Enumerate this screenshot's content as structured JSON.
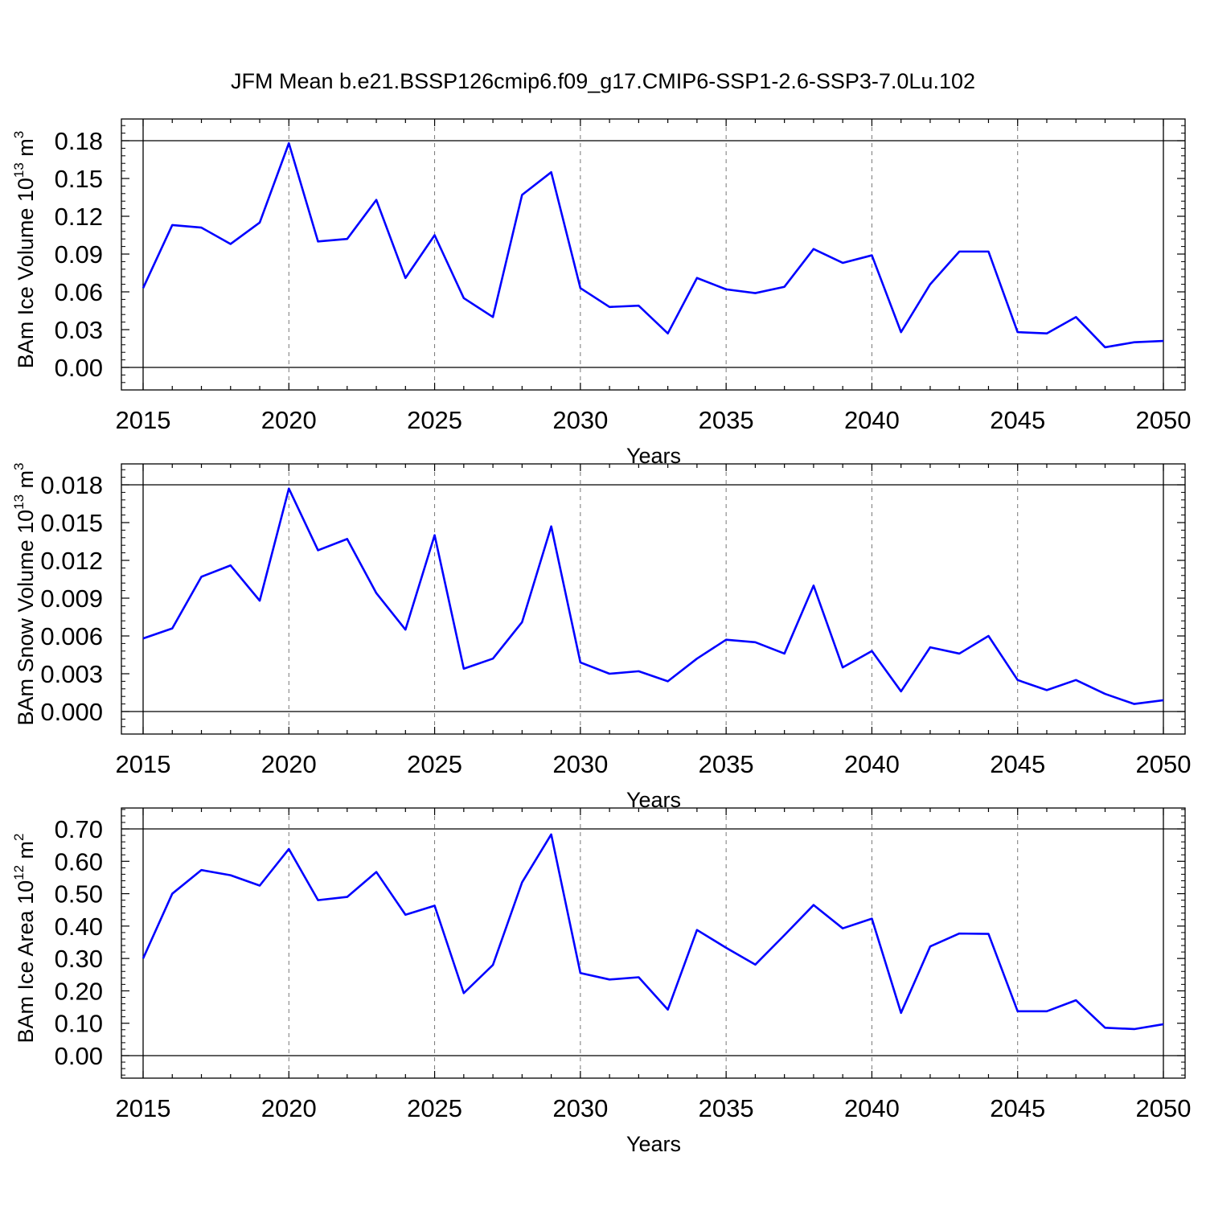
{
  "title": "JFM Mean b.e21.BSSP126cmip6.f09_g17.CMIP6-SSP1-2.6-SSP3-7.0Lu.102",
  "line_color": "#0000ff",
  "chart_data": [
    {
      "type": "line",
      "xlabel": "Years",
      "ylabel": "BAm Ice Volume 10",
      "ylabel_exp": "13",
      "ylabel_unit": " m",
      "ylabel_unit_exp": "3",
      "xlim": [
        2015,
        2050
      ],
      "ylim": [
        0,
        0.18
      ],
      "x_ticks": [
        2015,
        2020,
        2025,
        2030,
        2035,
        2040,
        2045,
        2050
      ],
      "x_tick_labels": [
        "2015",
        "2020",
        "2025",
        "2030",
        "2035",
        "2040",
        "2045",
        "2050"
      ],
      "y_ticks": [
        0,
        0.03,
        0.06,
        0.09,
        0.12,
        0.15,
        0.18
      ],
      "y_tick_labels": [
        "0.00",
        "0.03",
        "0.06",
        "0.09",
        "0.12",
        "0.15",
        "0.18"
      ],
      "grid": "vertical dashed at major x ticks",
      "x": [
        2015,
        2016,
        2017,
        2018,
        2019,
        2020,
        2021,
        2022,
        2023,
        2024,
        2025,
        2026,
        2027,
        2028,
        2029,
        2030,
        2031,
        2032,
        2033,
        2034,
        2035,
        2036,
        2037,
        2038,
        2039,
        2040,
        2041,
        2042,
        2043,
        2044,
        2045,
        2046,
        2047,
        2048,
        2049,
        2050
      ],
      "y": [
        0.063,
        0.113,
        0.111,
        0.098,
        0.115,
        0.178,
        0.1,
        0.102,
        0.133,
        0.071,
        0.105,
        0.055,
        0.04,
        0.137,
        0.155,
        0.063,
        0.048,
        0.049,
        0.027,
        0.071,
        0.062,
        0.059,
        0.064,
        0.094,
        0.083,
        0.089,
        0.028,
        0.066,
        0.092,
        0.092,
        0.028,
        0.027,
        0.04,
        0.016,
        0.02,
        0.021
      ]
    },
    {
      "type": "line",
      "xlabel": "Years",
      "ylabel": "BAm Snow Volume 10",
      "ylabel_exp": "13",
      "ylabel_unit": " m",
      "ylabel_unit_exp": "3",
      "xlim": [
        2015,
        2050
      ],
      "ylim": [
        0,
        0.018
      ],
      "x_ticks": [
        2015,
        2020,
        2025,
        2030,
        2035,
        2040,
        2045,
        2050
      ],
      "x_tick_labels": [
        "2015",
        "2020",
        "2025",
        "2030",
        "2035",
        "2040",
        "2045",
        "2050"
      ],
      "y_ticks": [
        0,
        0.003,
        0.006,
        0.009,
        0.012,
        0.015,
        0.018
      ],
      "y_tick_labels": [
        "0.000",
        "0.003",
        "0.006",
        "0.009",
        "0.012",
        "0.015",
        "0.018"
      ],
      "grid": "vertical dashed at major x ticks",
      "x": [
        2015,
        2016,
        2017,
        2018,
        2019,
        2020,
        2021,
        2022,
        2023,
        2024,
        2025,
        2026,
        2027,
        2028,
        2029,
        2030,
        2031,
        2032,
        2033,
        2034,
        2035,
        2036,
        2037,
        2038,
        2039,
        2040,
        2041,
        2042,
        2043,
        2044,
        2045,
        2046,
        2047,
        2048,
        2049,
        2050
      ],
      "y": [
        0.0058,
        0.0066,
        0.0107,
        0.0116,
        0.0088,
        0.0177,
        0.0128,
        0.0137,
        0.0094,
        0.0065,
        0.014,
        0.0034,
        0.0042,
        0.0071,
        0.0147,
        0.0039,
        0.003,
        0.0032,
        0.0024,
        0.0042,
        0.0057,
        0.0055,
        0.0046,
        0.01,
        0.0035,
        0.0048,
        0.0016,
        0.0051,
        0.0046,
        0.006,
        0.0025,
        0.0017,
        0.0025,
        0.0014,
        0.0006,
        0.0009
      ]
    },
    {
      "type": "line",
      "xlabel": "Years",
      "ylabel": "BAm Ice Area 10",
      "ylabel_exp": "12",
      "ylabel_unit": " m",
      "ylabel_unit_exp": "2",
      "xlim": [
        2015,
        2050
      ],
      "ylim": [
        0,
        0.7
      ],
      "x_ticks": [
        2015,
        2020,
        2025,
        2030,
        2035,
        2040,
        2045,
        2050
      ],
      "x_tick_labels": [
        "2015",
        "2020",
        "2025",
        "2030",
        "2035",
        "2040",
        "2045",
        "2050"
      ],
      "y_ticks": [
        0,
        0.1,
        0.2,
        0.3,
        0.4,
        0.5,
        0.6,
        0.7
      ],
      "y_tick_labels": [
        "0.00",
        "0.10",
        "0.20",
        "0.30",
        "0.40",
        "0.50",
        "0.60",
        "0.70"
      ],
      "grid": "vertical dashed at major x ticks",
      "x": [
        2015,
        2016,
        2017,
        2018,
        2019,
        2020,
        2021,
        2022,
        2023,
        2024,
        2025,
        2026,
        2027,
        2028,
        2029,
        2030,
        2031,
        2032,
        2033,
        2034,
        2035,
        2036,
        2037,
        2038,
        2039,
        2040,
        2041,
        2042,
        2043,
        2044,
        2045,
        2046,
        2047,
        2048,
        2049,
        2050
      ],
      "y": [
        0.3,
        0.5,
        0.573,
        0.557,
        0.525,
        0.638,
        0.48,
        0.49,
        0.567,
        0.435,
        0.463,
        0.193,
        0.28,
        0.535,
        0.683,
        0.255,
        0.235,
        0.242,
        0.142,
        0.388,
        0.333,
        0.281,
        0.372,
        0.465,
        0.393,
        0.423,
        0.132,
        0.337,
        0.377,
        0.376,
        0.137,
        0.137,
        0.171,
        0.086,
        0.082,
        0.097
      ]
    }
  ]
}
